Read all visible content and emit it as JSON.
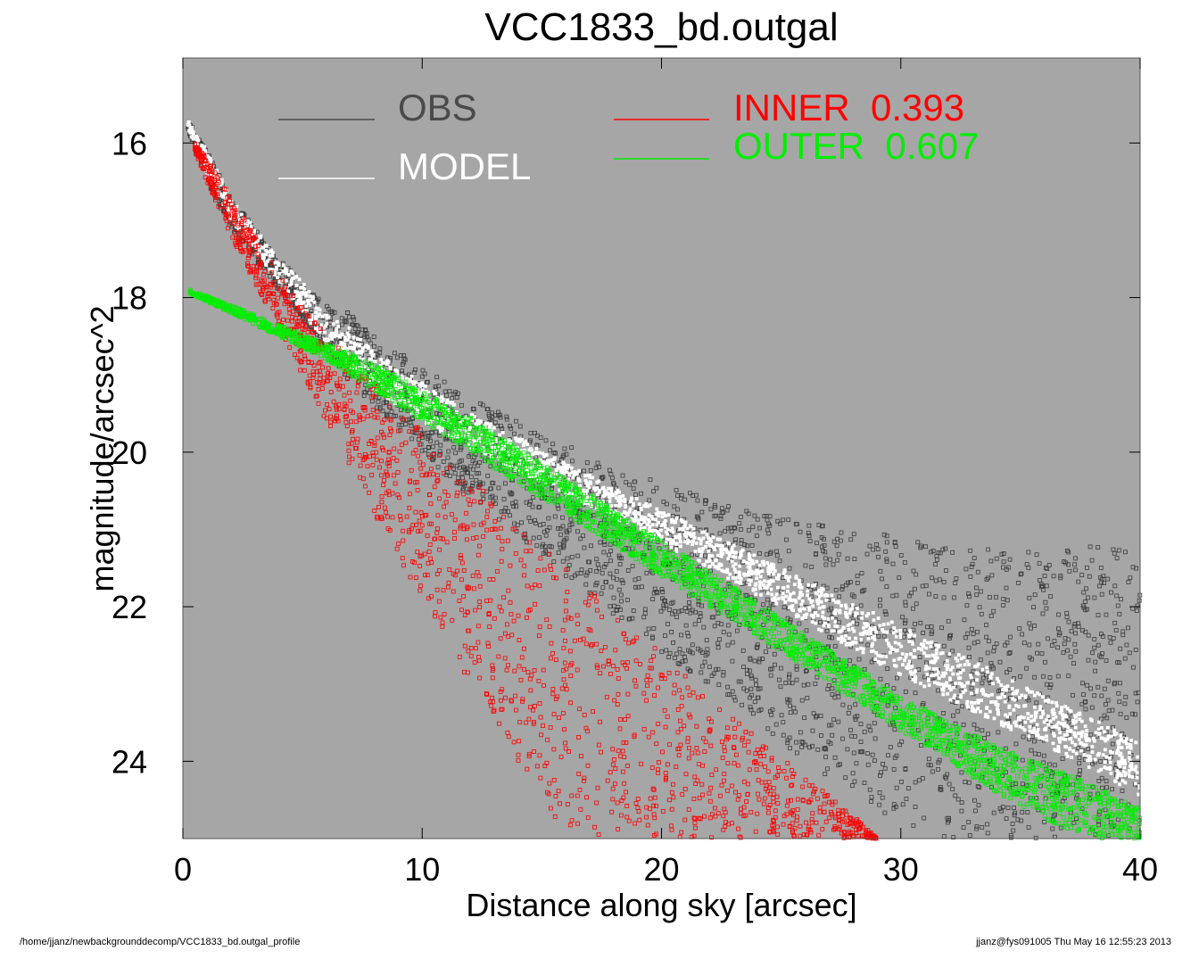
{
  "chart_data": {
    "type": "scatter",
    "title": "VCC1833_bd.outgal",
    "xlabel": "Distance along sky [arcsec]",
    "ylabel": "magnitude/arcsec^2",
    "xlim": [
      0,
      40
    ],
    "ylim": [
      25.0,
      14.9
    ],
    "y_inverted": true,
    "xticks": [
      0,
      10,
      20,
      30,
      40
    ],
    "yticks": [
      16,
      18,
      20,
      22,
      24
    ],
    "background": "#a6a6a6",
    "grid": false,
    "legend": [
      {
        "label": "OBS",
        "color": "#4a4a4a"
      },
      {
        "label": "MODEL",
        "color": "#ffffff"
      },
      {
        "label": "INNER",
        "value": "0.393",
        "color": "#ff0000"
      },
      {
        "label": "OUTER",
        "value": "0.607",
        "color": "#00ee00"
      }
    ],
    "series": [
      {
        "name": "OBS",
        "color": "#3c3c3c",
        "x": [
          0.2,
          1,
          2,
          3,
          4,
          5,
          6,
          7,
          8,
          10,
          12,
          14,
          16,
          18,
          20,
          22,
          24,
          26,
          28,
          30,
          32,
          34,
          36,
          38,
          40
        ],
        "y_upper": [
          15.7,
          16.1,
          16.7,
          17.1,
          17.5,
          17.8,
          18.1,
          18.2,
          18.5,
          18.9,
          19.3,
          19.6,
          19.9,
          20.2,
          20.4,
          20.6,
          20.8,
          20.9,
          21.0,
          21.1,
          21.15,
          21.2,
          21.3,
          21.2,
          21.3
        ],
        "y_lower": [
          15.9,
          16.5,
          17.1,
          17.5,
          17.9,
          18.3,
          18.7,
          19.1,
          19.4,
          20.0,
          20.6,
          21.1,
          21.6,
          22.1,
          22.6,
          23.0,
          23.5,
          24.0,
          24.4,
          24.8,
          25.0,
          25.0,
          25.0,
          25.0,
          25.0
        ]
      },
      {
        "name": "MODEL",
        "color": "#ffffff",
        "x": [
          0.2,
          1,
          2,
          3,
          4,
          5,
          6,
          7,
          8,
          10,
          12,
          14,
          16,
          18,
          20,
          22,
          24,
          26,
          28,
          30,
          32,
          34,
          36,
          38,
          40
        ],
        "y_upper": [
          15.7,
          16.1,
          16.7,
          17.1,
          17.5,
          17.8,
          18.2,
          18.4,
          18.7,
          19.1,
          19.5,
          19.8,
          20.15,
          20.45,
          20.75,
          21.05,
          21.35,
          21.65,
          21.95,
          22.25,
          22.55,
          22.85,
          23.15,
          23.45,
          23.75
        ],
        "y_lower": [
          15.8,
          16.4,
          17.0,
          17.4,
          17.8,
          18.2,
          18.6,
          18.9,
          19.2,
          19.6,
          19.95,
          20.25,
          20.55,
          20.85,
          21.2,
          21.5,
          21.85,
          22.2,
          22.55,
          22.9,
          23.2,
          23.5,
          23.8,
          24.1,
          24.45
        ]
      },
      {
        "name": "INNER",
        "color": "#ff0000",
        "x": [
          0.5,
          1,
          2,
          3,
          4,
          5,
          6,
          7,
          8,
          10,
          12,
          14,
          16,
          18,
          20,
          22,
          24,
          26,
          28,
          29
        ],
        "y_upper": [
          16.0,
          16.2,
          16.7,
          17.2,
          17.7,
          18.1,
          18.5,
          18.8,
          19.1,
          19.7,
          20.3,
          20.9,
          21.5,
          22.1,
          22.6,
          23.2,
          23.7,
          24.2,
          24.7,
          25.0
        ],
        "y_lower": [
          16.1,
          16.5,
          17.2,
          17.8,
          18.4,
          19.0,
          19.6,
          20.2,
          20.8,
          21.9,
          23.0,
          24.0,
          25.0,
          25.0,
          25.0,
          25.0,
          25.0,
          25.0,
          25.0,
          25.0
        ]
      },
      {
        "name": "OUTER",
        "color": "#00ee00",
        "x": [
          0.3,
          2,
          4,
          6,
          8,
          10,
          12,
          14,
          16,
          18,
          20,
          22,
          24,
          26,
          28,
          30,
          32,
          34,
          36,
          38,
          40
        ],
        "y_upper": [
          17.9,
          18.1,
          18.35,
          18.6,
          18.85,
          19.2,
          19.55,
          19.95,
          20.35,
          20.75,
          21.15,
          21.55,
          21.95,
          22.35,
          22.75,
          23.15,
          23.5,
          23.8,
          24.05,
          24.3,
          24.6
        ],
        "y_lower": [
          17.95,
          18.2,
          18.5,
          18.8,
          19.2,
          19.6,
          20.0,
          20.4,
          20.8,
          21.2,
          21.6,
          22.0,
          22.4,
          22.8,
          23.2,
          23.6,
          24.0,
          24.4,
          24.75,
          25.0,
          25.0
        ]
      }
    ]
  },
  "footer": {
    "path": "/home/jjanz/newbackgrounddecomp/VCC1833_bd.outgal_profile",
    "stamp": "jjanz@fys091005  Thu May 16 12:55:23 2013"
  }
}
